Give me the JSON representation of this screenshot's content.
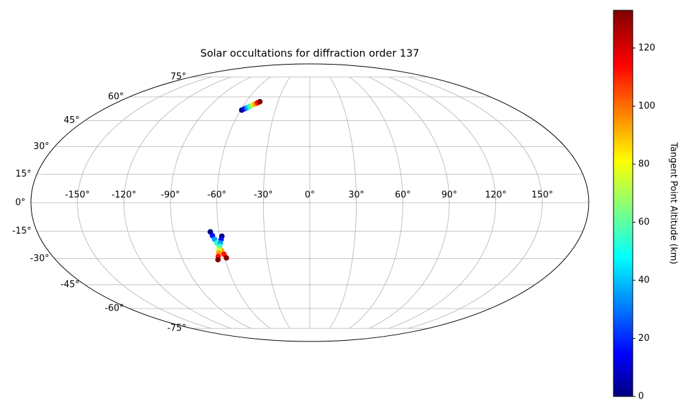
{
  "chart_data": {
    "type": "scatter",
    "projection": "mollweide",
    "title": "Solar occultations for diffraction order 137",
    "grid": true,
    "xticks": [
      {
        "value": -150,
        "label": "-150°"
      },
      {
        "value": -120,
        "label": "-120°"
      },
      {
        "value": -90,
        "label": "-90°"
      },
      {
        "value": -60,
        "label": "-60°"
      },
      {
        "value": -30,
        "label": "-30°"
      },
      {
        "value": 0,
        "label": "0°"
      },
      {
        "value": 30,
        "label": "30°"
      },
      {
        "value": 60,
        "label": "60°"
      },
      {
        "value": 90,
        "label": "90°"
      },
      {
        "value": 120,
        "label": "120°"
      },
      {
        "value": 150,
        "label": "150°"
      }
    ],
    "yticks": [
      {
        "value": -75,
        "label": "-75°"
      },
      {
        "value": -60,
        "label": "-60°"
      },
      {
        "value": -45,
        "label": "-45°"
      },
      {
        "value": -30,
        "label": "-30°"
      },
      {
        "value": -15,
        "label": "-15°"
      },
      {
        "value": 0,
        "label": "0°"
      },
      {
        "value": 15,
        "label": "15°"
      },
      {
        "value": 30,
        "label": "30°"
      },
      {
        "value": 45,
        "label": "45°"
      },
      {
        "value": 60,
        "label": "60°"
      },
      {
        "value": 75,
        "label": "75°"
      }
    ],
    "colormap": "jet",
    "colorbar": {
      "label": "Tangent Point Altitude (km)",
      "lim": [
        0,
        133
      ],
      "ticks": [
        0,
        20,
        40,
        60,
        80,
        100,
        120
      ]
    },
    "series": [
      {
        "lon": [
          -59,
          -57.3,
          -55.6,
          -53.9,
          -52.1,
          -50.4,
          -48.7,
          -47
        ],
        "lat": [
          51.4,
          52.2,
          52.9,
          53.7,
          54.5,
          55.3,
          56.0,
          56.8
        ],
        "altitude": [
          0,
          19,
          38,
          57,
          76,
          95,
          114,
          133
        ]
      },
      {
        "lon": [
          -65.7,
          -64.7,
          -63.7,
          -62.7,
          -61.7,
          -60.7,
          -59.7,
          -58.7
        ],
        "lat": [
          -15.4,
          -17.4,
          -19.4,
          -21.4,
          -23.5,
          -25.5,
          -27.5,
          -29.5
        ],
        "altitude": [
          0,
          19,
          38,
          57,
          76,
          95,
          114,
          133
        ]
      },
      {
        "lon": [
          -58.5,
          -59.4,
          -60.4,
          -61.3,
          -62.2,
          -63.1,
          -64.1,
          -65
        ],
        "lat": [
          -17.7,
          -19.5,
          -21.4,
          -23.2,
          -25.0,
          -26.8,
          -28.7,
          -30.5
        ],
        "altitude": [
          0,
          19,
          38,
          57,
          76,
          95,
          114,
          133
        ]
      }
    ]
  }
}
